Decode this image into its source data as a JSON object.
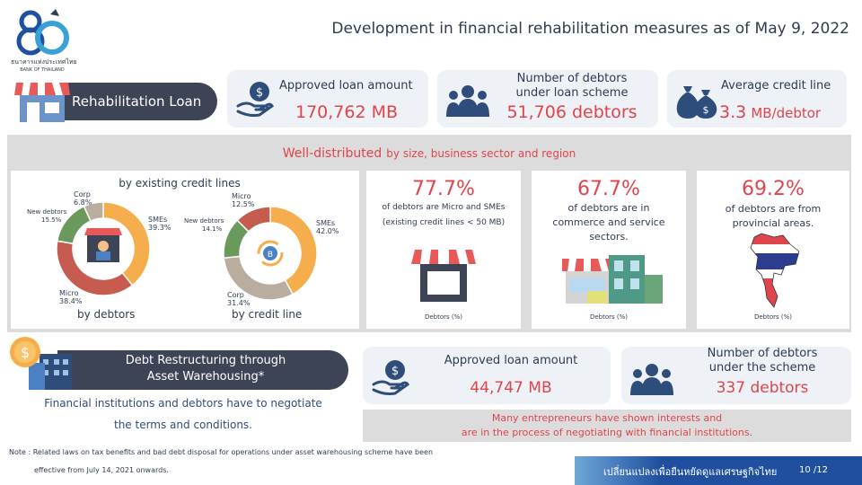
{
  "header": {
    "logo_number": "80",
    "logo_org_th": "ธนาคารแห่งประเทศไทย",
    "logo_org_en": "BANK OF THAILAND",
    "title": "Development in financial rehabilitation measures as of May 9, 2022"
  },
  "rehab": {
    "label": "Rehabilitation Loan",
    "approved_label": "Approved loan amount",
    "approved_value": "170,762 MB",
    "debtors_label_1": "Number of debtors",
    "debtors_label_2": "under loan scheme",
    "debtors_value": "51,706 debtors",
    "avg_label": "Average credit line",
    "avg_value": "3.3",
    "avg_unit": "MB/debtor"
  },
  "distribution": {
    "headline_strong": "Well-distributed",
    "headline_rest": "by size, business sector and region",
    "donut_title": "by existing credit lines",
    "donut1_caption": "by debtors",
    "donut2_caption": "by credit line",
    "donut1": [
      {
        "name": "SMEs",
        "pct_label": "39.3%",
        "value": 39.3,
        "color": "#f6ad4b"
      },
      {
        "name": "Micro",
        "pct_label": "38.4%",
        "value": 38.4,
        "color": "#c65b4f"
      },
      {
        "name": "New debtors",
        "pct_label": "15.5%",
        "value": 15.5,
        "color": "#6a9a5b"
      },
      {
        "name": "Corp",
        "pct_label": "6.8%",
        "value": 6.8,
        "color": "#b8ad9f"
      }
    ],
    "donut2": [
      {
        "name": "SMEs",
        "pct_label": "42.0%",
        "value": 42.0,
        "color": "#f6ad4b"
      },
      {
        "name": "Corp",
        "pct_label": "31.4%",
        "value": 31.4,
        "color": "#b8ad9f"
      },
      {
        "name": "New debtors",
        "pct_label": "14.1%",
        "value": 14.1,
        "color": "#6a9a5b"
      },
      {
        "name": "Micro",
        "pct_label": "12.5%",
        "value": 12.5,
        "color": "#c65b4f"
      }
    ],
    "stat1_value": "77.7%",
    "stat1_line1": "of debtors are Micro and SMEs",
    "stat1_line2": "(existing credit lines < 50 MB)",
    "stat2_value": "67.7%",
    "stat2_line1": "of debtors are in",
    "stat2_line2": "commerce and service",
    "stat2_line3": "sectors.",
    "stat3_value": "69.2%",
    "stat3_line1": "of debtors are from",
    "stat3_line2": "provincial areas.",
    "footnote_label": "Debtors (%)"
  },
  "warehousing": {
    "label_line1": "Debt Restructuring  through",
    "label_line2": "Asset Warehousing*",
    "note_line1": "Financial institutions and debtors have to negotiate",
    "note_line2": "the terms and conditions.",
    "approved_label": "Approved loan amount",
    "approved_value": "44,747 MB",
    "debtors_label_1": "Number of debtors",
    "debtors_label_2": "under the scheme",
    "debtors_value": "337 debtors",
    "interest_line1": "Many entrepreneurs have shown interests and",
    "interest_line2": "are in the process of negotiating with financial institutions."
  },
  "footer": {
    "note_line1": "Note : Related laws on tax benefits and bad debt disposal for operations under asset warehousing scheme have been",
    "note_line2": "effective from July 14, 2021 onwards.",
    "slogan": "เปลี่ยนแปลงเพื่อยืนหยัดดูแลเศรษฐกิจไทย",
    "page": "10 /12"
  },
  "colors": {
    "accent_red": "#e0444c",
    "navy": "#2f3b52",
    "banner_dark": "#3c4456",
    "footer_blue": "#1f4f9e"
  }
}
